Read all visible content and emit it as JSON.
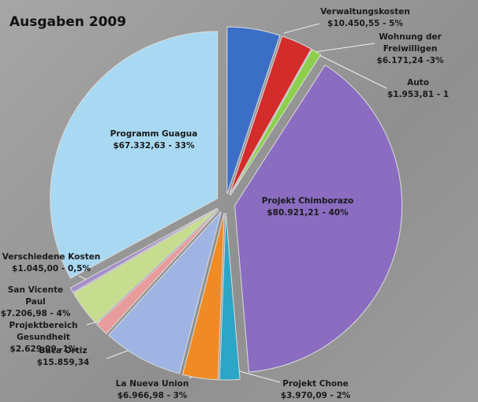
{
  "chart_data": {
    "type": "pie",
    "title": "Ausgaben 2009",
    "categories": [
      "Verwaltungskosten",
      "Wohnung der Freiwilligen",
      "Auto",
      "Projekt Chimborazo",
      "Projekt Chone",
      "La Nueva Union",
      "Baca Ortiz",
      "Projektbereich Gesundheit",
      "San Vicente Paul",
      "Verschiedene Kosten",
      "Programm Guagua"
    ],
    "values": [
      10450.55,
      6171.24,
      1953.81,
      80921.21,
      3970.09,
      6966.98,
      15859.34,
      2629.09,
      7206.98,
      1045.0,
      67332.63
    ],
    "value_labels": [
      "$10.450,55 - 5%",
      "$6.171,24 -3%",
      "$1.953,81 - 1",
      "$80.921,21 - 40%",
      "$3.970,09 - 2%",
      "$6.966,98 - 3%",
      "$15.859,34",
      "$2.629,09 -1%",
      "$7.206,98 - 4%",
      "$1.045,00 - 0,5%",
      "$67.332,63 - 33%"
    ],
    "colors": [
      "#3b6fc6",
      "#d42b2b",
      "#8ccf4d",
      "#8a6cc0",
      "#2ba6c6",
      "#ef8a25",
      "#9fb4e2",
      "#e89b9b",
      "#c6dc8e",
      "#a48ec9",
      "#a9d9f2"
    ]
  }
}
